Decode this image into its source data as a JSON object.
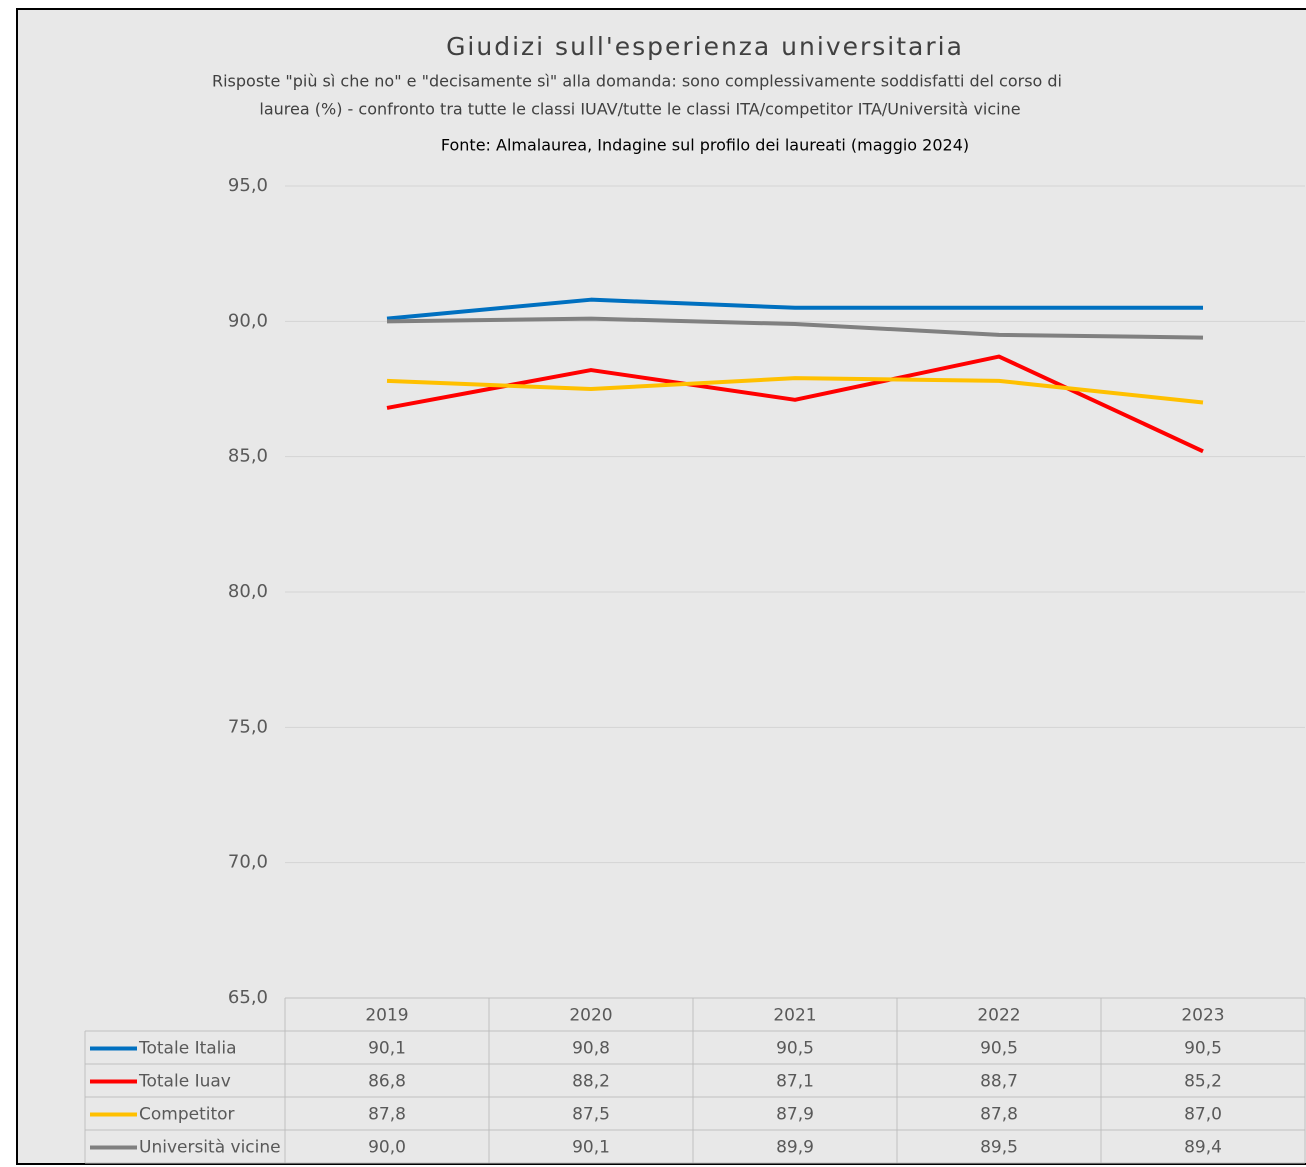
{
  "chart_data": {
    "type": "line",
    "title": "Giudizi sull'esperienza universitaria",
    "subtitle": [
      "Risposte \"più sì che no\" e \"decisamente sì\" alla domanda: sono complessivamente soddisfatti del corso di",
      "laurea (%) - confronto tra tutte le classi IUAV/tutte le classi ITA/competitor ITA/Università vicine"
    ],
    "source": "Fonte: Almalaurea, Indagine sul profilo dei laureati (maggio 2024)",
    "categories": [
      "2019",
      "2020",
      "2021",
      "2022",
      "2023"
    ],
    "series": [
      {
        "name": "Totale Italia",
        "color": "#0070c0",
        "values": [
          90.1,
          90.8,
          90.5,
          90.5,
          90.5
        ],
        "value_labels": [
          "90,1",
          "90,8",
          "90,5",
          "90,5",
          "90,5"
        ]
      },
      {
        "name": "Totale Iuav",
        "color": "#ff0000",
        "values": [
          86.8,
          88.2,
          87.1,
          88.7,
          85.2
        ],
        "value_labels": [
          "86,8",
          "88,2",
          "87,1",
          "88,7",
          "85,2"
        ]
      },
      {
        "name": "Competitor",
        "color": "#ffc000",
        "values": [
          87.8,
          87.5,
          87.9,
          87.8,
          87.0
        ],
        "value_labels": [
          "87,8",
          "87,5",
          "87,9",
          "87,8",
          "87,0"
        ]
      },
      {
        "name": "Università vicine",
        "color": "#808080",
        "values": [
          90.0,
          90.1,
          89.9,
          89.5,
          89.4
        ],
        "value_labels": [
          "90,0",
          "90,1",
          "89,9",
          "89,5",
          "89,4"
        ]
      }
    ],
    "ylim": [
      65,
      95
    ],
    "yticks": [
      {
        "value": 65,
        "label": "65,0"
      },
      {
        "value": 70,
        "label": "70,0"
      },
      {
        "value": 75,
        "label": "75,0"
      },
      {
        "value": 80,
        "label": "80,0"
      },
      {
        "value": 85,
        "label": "85,0"
      },
      {
        "value": 90,
        "label": "90,0"
      },
      {
        "value": 95,
        "label": "95,0"
      }
    ],
    "grid": true,
    "legend": "data-table"
  }
}
